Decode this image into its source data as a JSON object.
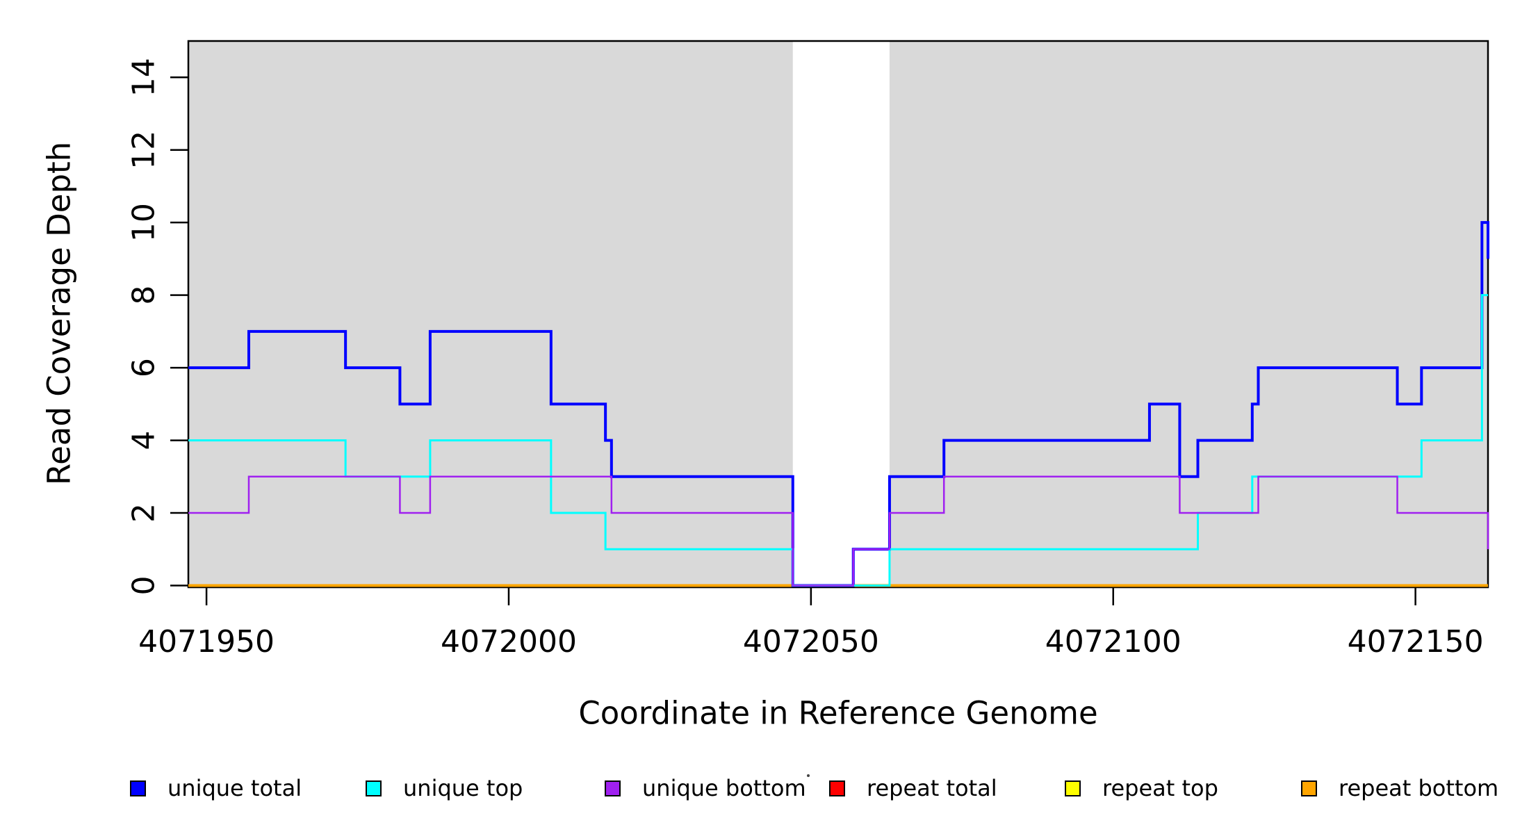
{
  "figure": {
    "background_color": "#FFFFFF",
    "shaded_region_color": "#D9D9D9",
    "axis_color": "#000000"
  },
  "chart_data": {
    "type": "line",
    "step": "step-after",
    "title": "",
    "xlabel": "Coordinate in Reference Genome",
    "ylabel": "Read Coverage Depth",
    "xlim": [
      4071947,
      4072162
    ],
    "ylim": [
      0,
      15
    ],
    "xticks": [
      4071950,
      4072000,
      4072050,
      4072100,
      4072150
    ],
    "yticks": [
      0,
      2,
      4,
      6,
      8,
      10,
      12,
      14
    ],
    "grid": false,
    "legend_position": "bottom",
    "shaded_x_regions": [
      [
        4071947,
        4072047
      ],
      [
        4072063,
        4072162
      ]
    ],
    "uncovered_gap_region": [
      4072047,
      4072063
    ],
    "series": [
      {
        "name": "repeat total",
        "color": "#FF0000",
        "lwd": 4,
        "points": [
          [
            4071947,
            0
          ],
          [
            4072162,
            0
          ]
        ]
      },
      {
        "name": "repeat top",
        "color": "#FFFF00",
        "lwd": 4,
        "points": [
          [
            4071947,
            0
          ],
          [
            4072162,
            0
          ]
        ]
      },
      {
        "name": "repeat bottom",
        "color": "#FFA500",
        "lwd": 4,
        "points": [
          [
            4071947,
            0
          ],
          [
            4072162,
            0
          ]
        ]
      },
      {
        "name": "unique total",
        "color": "#0000FF",
        "lwd": 4,
        "points": [
          [
            4071947,
            6
          ],
          [
            4071957,
            7
          ],
          [
            4071973,
            6
          ],
          [
            4071982,
            5
          ],
          [
            4071987,
            7
          ],
          [
            4072007,
            5
          ],
          [
            4072016,
            4
          ],
          [
            4072017,
            3
          ],
          [
            4072047,
            0
          ],
          [
            4072057,
            1
          ],
          [
            4072063,
            3
          ],
          [
            4072072,
            4
          ],
          [
            4072106,
            5
          ],
          [
            4072111,
            3
          ],
          [
            4072114,
            4
          ],
          [
            4072123,
            5
          ],
          [
            4072124,
            6
          ],
          [
            4072147,
            5
          ],
          [
            4072151,
            6
          ],
          [
            4072161,
            10
          ],
          [
            4072162,
            9
          ]
        ]
      },
      {
        "name": "unique top",
        "color": "#00FFFF",
        "lwd": 3,
        "points": [
          [
            4071947,
            4
          ],
          [
            4071973,
            3
          ],
          [
            4071987,
            4
          ],
          [
            4072007,
            2
          ],
          [
            4072016,
            1
          ],
          [
            4072047,
            0
          ],
          [
            4072063,
            1
          ],
          [
            4072114,
            2
          ],
          [
            4072123,
            3
          ],
          [
            4072151,
            4
          ],
          [
            4072161,
            8
          ]
        ]
      },
      {
        "name": "unique bottom",
        "color": "#A020F0",
        "lwd": 2.5,
        "points": [
          [
            4071947,
            2
          ],
          [
            4071957,
            3
          ],
          [
            4071982,
            2
          ],
          [
            4071987,
            3
          ],
          [
            4072017,
            2
          ],
          [
            4072047,
            0
          ],
          [
            4072057,
            1
          ],
          [
            4072063,
            2
          ],
          [
            4072072,
            3
          ],
          [
            4072111,
            2
          ],
          [
            4072124,
            3
          ],
          [
            4072147,
            2
          ],
          [
            4072162,
            1
          ]
        ]
      }
    ],
    "legend": {
      "items": [
        {
          "label": "unique total",
          "color": "#0000FF"
        },
        {
          "label": "unique top",
          "color": "#00FFFF"
        },
        {
          "label": "unique bottom",
          "color": "#A020F0"
        },
        {
          "label": "repeat total",
          "color": "#FF0000"
        },
        {
          "label": "repeat top",
          "color": "#FFFF00"
        },
        {
          "label": "repeat bottom",
          "color": "#FFA500"
        }
      ]
    }
  }
}
